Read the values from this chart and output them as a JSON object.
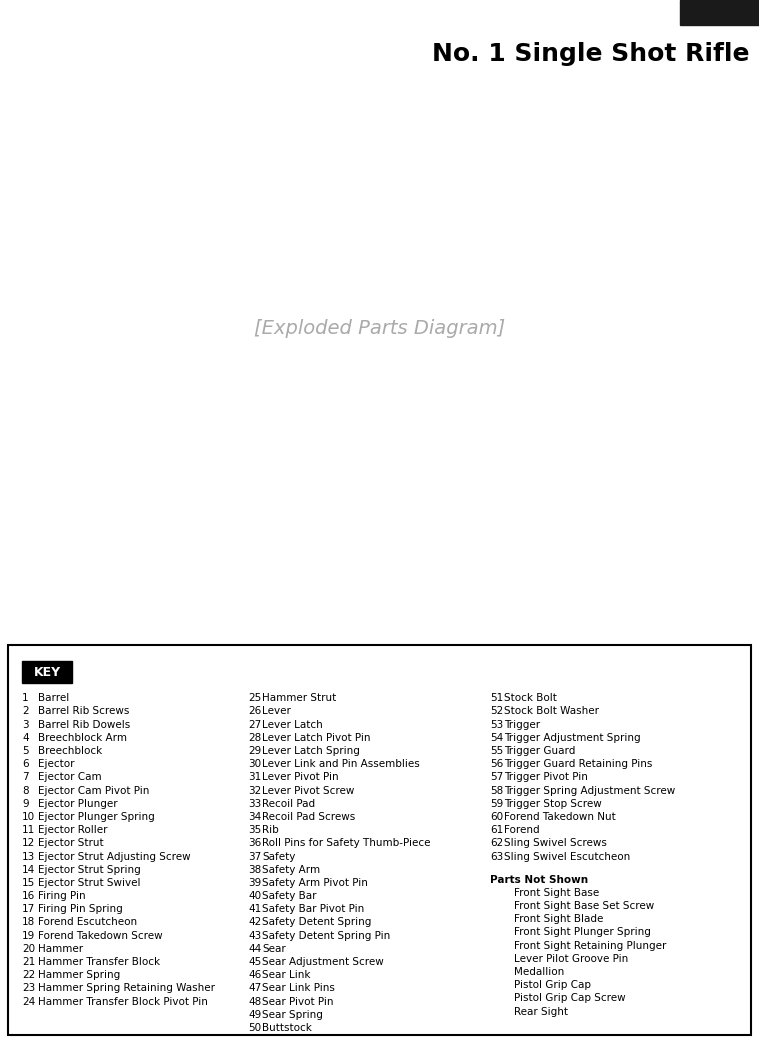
{
  "title": "No. 1 Single Shot Rifle",
  "background_color": "#ffffff",
  "key_box_color": "#000000",
  "key_text": "KEY",
  "parts_col1": [
    [
      1,
      "Barrel"
    ],
    [
      2,
      "Barrel Rib Screws"
    ],
    [
      3,
      "Barrel Rib Dowels"
    ],
    [
      4,
      "Breechblock Arm"
    ],
    [
      5,
      "Breechblock"
    ],
    [
      6,
      "Ejector"
    ],
    [
      7,
      "Ejector Cam"
    ],
    [
      8,
      "Ejector Cam Pivot Pin"
    ],
    [
      9,
      "Ejector Plunger"
    ],
    [
      10,
      "Ejector Plunger Spring"
    ],
    [
      11,
      "Ejector Roller"
    ],
    [
      12,
      "Ejector Strut"
    ],
    [
      13,
      "Ejector Strut Adjusting Screw"
    ],
    [
      14,
      "Ejector Strut Spring"
    ],
    [
      15,
      "Ejector Strut Swivel"
    ],
    [
      16,
      "Firing Pin"
    ],
    [
      17,
      "Firing Pin Spring"
    ],
    [
      18,
      "Forend Escutcheon"
    ],
    [
      19,
      "Forend Takedown Screw"
    ],
    [
      20,
      "Hammer"
    ],
    [
      21,
      "Hammer Transfer Block"
    ],
    [
      22,
      "Hammer Spring"
    ],
    [
      23,
      "Hammer Spring Retaining Washer"
    ],
    [
      24,
      "Hammer Transfer Block Pivot Pin"
    ]
  ],
  "parts_col2": [
    [
      25,
      "Hammer Strut"
    ],
    [
      26,
      "Lever"
    ],
    [
      27,
      "Lever Latch"
    ],
    [
      28,
      "Lever Latch Pivot Pin"
    ],
    [
      29,
      "Lever Latch Spring"
    ],
    [
      30,
      "Lever Link and Pin Assemblies"
    ],
    [
      31,
      "Lever Pivot Pin"
    ],
    [
      32,
      "Lever Pivot Screw"
    ],
    [
      33,
      "Recoil Pad"
    ],
    [
      34,
      "Recoil Pad Screws"
    ],
    [
      35,
      "Rib"
    ],
    [
      36,
      "Roll Pins for Safety Thumb-Piece"
    ],
    [
      37,
      "Safety"
    ],
    [
      38,
      "Safety Arm"
    ],
    [
      39,
      "Safety Arm Pivot Pin"
    ],
    [
      40,
      "Safety Bar"
    ],
    [
      41,
      "Safety Bar Pivot Pin"
    ],
    [
      42,
      "Safety Detent Spring"
    ],
    [
      43,
      "Safety Detent Spring Pin"
    ],
    [
      44,
      "Sear"
    ],
    [
      45,
      "Sear Adjustment Screw"
    ],
    [
      46,
      "Sear Link"
    ],
    [
      47,
      "Sear Link Pins"
    ],
    [
      48,
      "Sear Pivot Pin"
    ],
    [
      49,
      "Sear Spring"
    ],
    [
      50,
      "Buttstock"
    ]
  ],
  "parts_col3": [
    [
      51,
      "Stock Bolt"
    ],
    [
      52,
      "Stock Bolt Washer"
    ],
    [
      53,
      "Trigger"
    ],
    [
      54,
      "Trigger Adjustment Spring"
    ],
    [
      55,
      "Trigger Guard"
    ],
    [
      56,
      "Trigger Guard Retaining Pins"
    ],
    [
      57,
      "Trigger Pivot Pin"
    ],
    [
      58,
      "Trigger Spring Adjustment Screw"
    ],
    [
      59,
      "Trigger Stop Screw"
    ],
    [
      60,
      "Forend Takedown Nut"
    ],
    [
      61,
      "Forend"
    ],
    [
      62,
      "Sling Swivel Screws"
    ],
    [
      63,
      "Sling Swivel Escutcheon"
    ]
  ],
  "parts_not_shown": [
    "Front Sight Base",
    "Front Sight Base Set Screw",
    "Front Sight Blade",
    "Front Sight Plunger Spring",
    "Front Sight Retaining Plunger",
    "Lever Pilot Groove Pin",
    "Medallion",
    "Pistol Grip Cap",
    "Pistol Grip Cap Screw",
    "Rear Sight"
  ]
}
